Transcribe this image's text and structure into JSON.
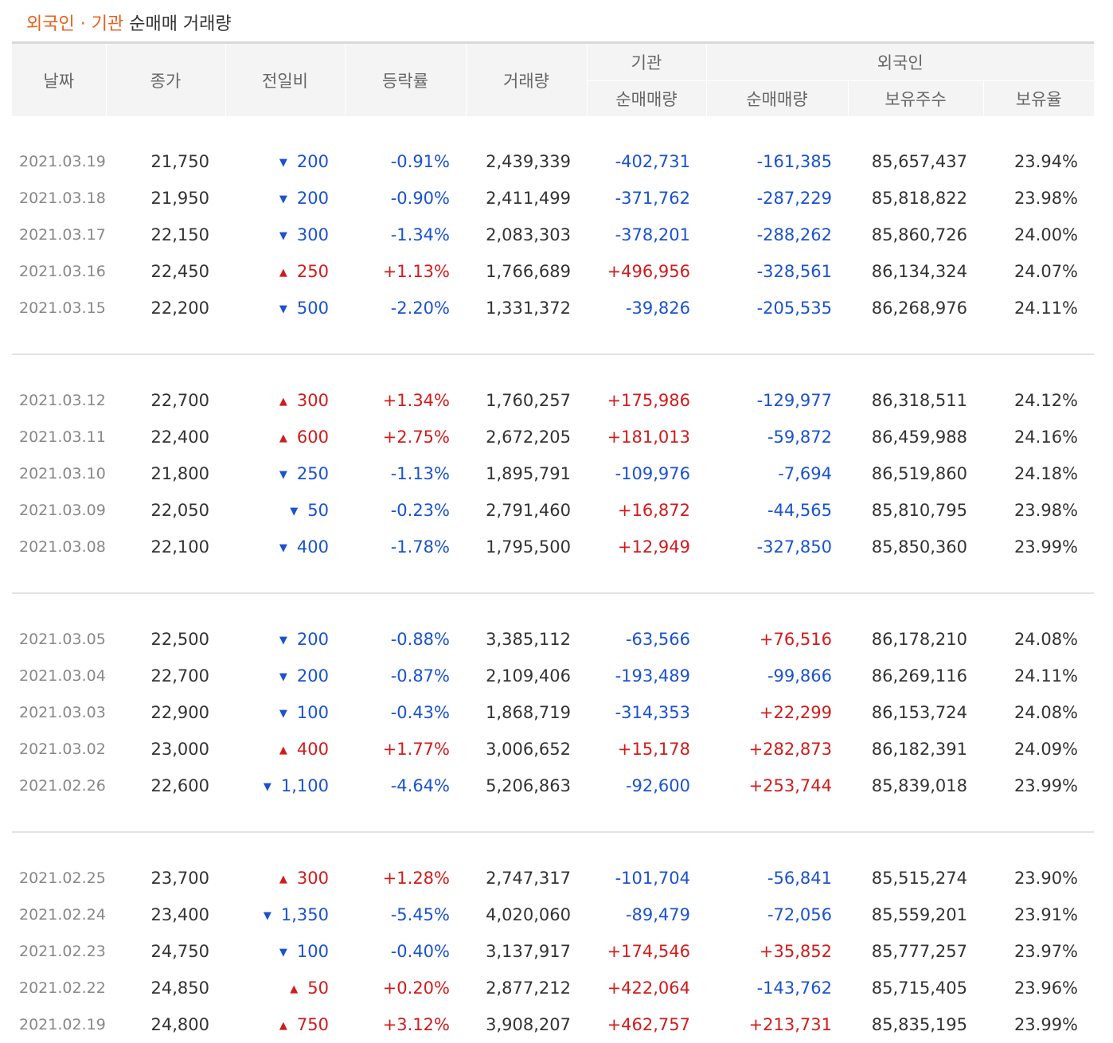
{
  "title": {
    "foreign": "외국인",
    "dot": "·",
    "inst": "기관",
    "rest": "순매매 거래량"
  },
  "headers": {
    "date": "날짜",
    "close": "종가",
    "change": "전일비",
    "rate": "등락률",
    "volume": "거래량",
    "inst_group": "기관",
    "inst_net": "순매매량",
    "foreign_group": "외국인",
    "foreign_net": "순매매량",
    "foreign_shares": "보유주수",
    "foreign_ratio": "보유율"
  },
  "colors": {
    "up": "#d21b1b",
    "down": "#1a52d0",
    "title_accent": "#e8601c"
  },
  "groups": [
    [
      {
        "date": "2021.03.19",
        "close": "21,750",
        "dir": "down",
        "change": "200",
        "rate": "-0.91%",
        "volume": "2,439,339",
        "inst": "-402,731",
        "foreign": "-161,385",
        "shares": "85,657,437",
        "ratio": "23.94%"
      },
      {
        "date": "2021.03.18",
        "close": "21,950",
        "dir": "down",
        "change": "200",
        "rate": "-0.90%",
        "volume": "2,411,499",
        "inst": "-371,762",
        "foreign": "-287,229",
        "shares": "85,818,822",
        "ratio": "23.98%"
      },
      {
        "date": "2021.03.17",
        "close": "22,150",
        "dir": "down",
        "change": "300",
        "rate": "-1.34%",
        "volume": "2,083,303",
        "inst": "-378,201",
        "foreign": "-288,262",
        "shares": "85,860,726",
        "ratio": "24.00%"
      },
      {
        "date": "2021.03.16",
        "close": "22,450",
        "dir": "up",
        "change": "250",
        "rate": "+1.13%",
        "volume": "1,766,689",
        "inst": "+496,956",
        "foreign": "-328,561",
        "shares": "86,134,324",
        "ratio": "24.07%"
      },
      {
        "date": "2021.03.15",
        "close": "22,200",
        "dir": "down",
        "change": "500",
        "rate": "-2.20%",
        "volume": "1,331,372",
        "inst": "-39,826",
        "foreign": "-205,535",
        "shares": "86,268,976",
        "ratio": "24.11%"
      }
    ],
    [
      {
        "date": "2021.03.12",
        "close": "22,700",
        "dir": "up",
        "change": "300",
        "rate": "+1.34%",
        "volume": "1,760,257",
        "inst": "+175,986",
        "foreign": "-129,977",
        "shares": "86,318,511",
        "ratio": "24.12%"
      },
      {
        "date": "2021.03.11",
        "close": "22,400",
        "dir": "up",
        "change": "600",
        "rate": "+2.75%",
        "volume": "2,672,205",
        "inst": "+181,013",
        "foreign": "-59,872",
        "shares": "86,459,988",
        "ratio": "24.16%"
      },
      {
        "date": "2021.03.10",
        "close": "21,800",
        "dir": "down",
        "change": "250",
        "rate": "-1.13%",
        "volume": "1,895,791",
        "inst": "-109,976",
        "foreign": "-7,694",
        "shares": "86,519,860",
        "ratio": "24.18%"
      },
      {
        "date": "2021.03.09",
        "close": "22,050",
        "dir": "down",
        "change": "50",
        "rate": "-0.23%",
        "volume": "2,791,460",
        "inst": "+16,872",
        "foreign": "-44,565",
        "shares": "85,810,795",
        "ratio": "23.98%"
      },
      {
        "date": "2021.03.08",
        "close": "22,100",
        "dir": "down",
        "change": "400",
        "rate": "-1.78%",
        "volume": "1,795,500",
        "inst": "+12,949",
        "foreign": "-327,850",
        "shares": "85,850,360",
        "ratio": "23.99%"
      }
    ],
    [
      {
        "date": "2021.03.05",
        "close": "22,500",
        "dir": "down",
        "change": "200",
        "rate": "-0.88%",
        "volume": "3,385,112",
        "inst": "-63,566",
        "foreign": "+76,516",
        "shares": "86,178,210",
        "ratio": "24.08%"
      },
      {
        "date": "2021.03.04",
        "close": "22,700",
        "dir": "down",
        "change": "200",
        "rate": "-0.87%",
        "volume": "2,109,406",
        "inst": "-193,489",
        "foreign": "-99,866",
        "shares": "86,269,116",
        "ratio": "24.11%"
      },
      {
        "date": "2021.03.03",
        "close": "22,900",
        "dir": "down",
        "change": "100",
        "rate": "-0.43%",
        "volume": "1,868,719",
        "inst": "-314,353",
        "foreign": "+22,299",
        "shares": "86,153,724",
        "ratio": "24.08%"
      },
      {
        "date": "2021.03.02",
        "close": "23,000",
        "dir": "up",
        "change": "400",
        "rate": "+1.77%",
        "volume": "3,006,652",
        "inst": "+15,178",
        "foreign": "+282,873",
        "shares": "86,182,391",
        "ratio": "24.09%"
      },
      {
        "date": "2021.02.26",
        "close": "22,600",
        "dir": "down",
        "change": "1,100",
        "rate": "-4.64%",
        "volume": "5,206,863",
        "inst": "-92,600",
        "foreign": "+253,744",
        "shares": "85,839,018",
        "ratio": "23.99%"
      }
    ],
    [
      {
        "date": "2021.02.25",
        "close": "23,700",
        "dir": "up",
        "change": "300",
        "rate": "+1.28%",
        "volume": "2,747,317",
        "inst": "-101,704",
        "foreign": "-56,841",
        "shares": "85,515,274",
        "ratio": "23.90%"
      },
      {
        "date": "2021.02.24",
        "close": "23,400",
        "dir": "down",
        "change": "1,350",
        "rate": "-5.45%",
        "volume": "4,020,060",
        "inst": "-89,479",
        "foreign": "-72,056",
        "shares": "85,559,201",
        "ratio": "23.91%"
      },
      {
        "date": "2021.02.23",
        "close": "24,750",
        "dir": "down",
        "change": "100",
        "rate": "-0.40%",
        "volume": "3,137,917",
        "inst": "+174,546",
        "foreign": "+35,852",
        "shares": "85,777,257",
        "ratio": "23.97%"
      },
      {
        "date": "2021.02.22",
        "close": "24,850",
        "dir": "up",
        "change": "50",
        "rate": "+0.20%",
        "volume": "2,877,212",
        "inst": "+422,064",
        "foreign": "-143,762",
        "shares": "85,715,405",
        "ratio": "23.96%"
      },
      {
        "date": "2021.02.19",
        "close": "24,800",
        "dir": "up",
        "change": "750",
        "rate": "+3.12%",
        "volume": "3,908,207",
        "inst": "+462,757",
        "foreign": "+213,731",
        "shares": "85,835,195",
        "ratio": "23.99%"
      }
    ]
  ]
}
